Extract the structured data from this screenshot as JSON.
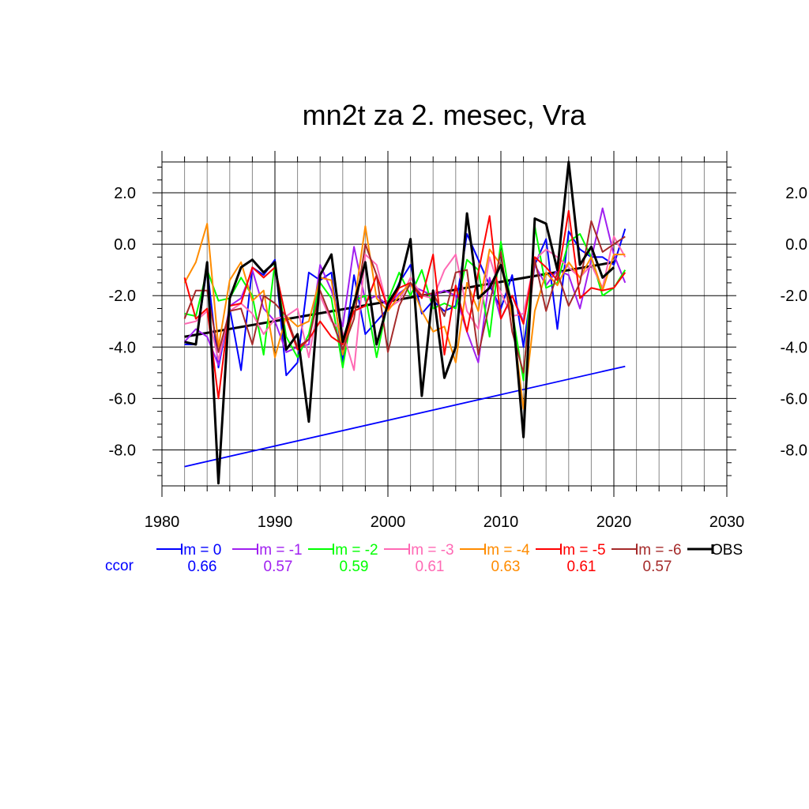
{
  "chart_data": {
    "type": "line",
    "title": "mn2t za 2. mesec, Vra",
    "xlabel": "",
    "ylabel": "",
    "xlim": [
      1980,
      2030
    ],
    "ylim": [
      -9.4,
      3.2
    ],
    "x_ticks": [
      1980,
      1990,
      2000,
      2010,
      2020,
      2030
    ],
    "y_ticks": [
      2.0,
      0.0,
      -2.0,
      -4.0,
      -6.0,
      -8.0
    ],
    "y_tick_labels": [
      "2.0",
      "0.0",
      "-2.0",
      "-4.0",
      "-6.0",
      "-8.0"
    ],
    "grid": true,
    "legend_position": "below",
    "x": [
      1982,
      1983,
      1984,
      1985,
      1986,
      1987,
      1988,
      1989,
      1990,
      1991,
      1992,
      1993,
      1994,
      1995,
      1996,
      1997,
      1998,
      1999,
      2000,
      2001,
      2002,
      2003,
      2004,
      2005,
      2006,
      2007,
      2008,
      2009,
      2010,
      2011,
      2012,
      2013,
      2014,
      2015,
      2016,
      2017,
      2018,
      2019,
      2020,
      2021
    ],
    "series": [
      {
        "name": "lm = 0",
        "color": "#0000ff",
        "ccor": "0.66",
        "values": [
          -3.9,
          -3.9,
          -0.9,
          -4.8,
          -2.5,
          -4.9,
          -0.9,
          -1.2,
          -0.6,
          -5.1,
          -4.6,
          -1.1,
          -1.4,
          -1.1,
          -4.6,
          -1.2,
          -3.5,
          -3.0,
          -2.5,
          -1.5,
          -0.8,
          -2.7,
          -2.2,
          -2.6,
          -2.4,
          0.4,
          -0.6,
          -1.6,
          -2.5,
          -1.2,
          -4.0,
          -0.8,
          0.2,
          -3.3,
          0.5,
          -0.2,
          -0.5,
          -0.5,
          -0.8,
          0.6
        ]
      },
      {
        "name": "lm = -1",
        "color": "#a020f0",
        "ccor": "0.57",
        "values": [
          -3.8,
          -3.3,
          -3.6,
          -4.7,
          -2.4,
          -2.1,
          -1.0,
          -2.5,
          -3.0,
          -4.2,
          -4.0,
          -3.9,
          -0.8,
          -1.8,
          -3.2,
          -0.1,
          -2.2,
          -2.0,
          -2.4,
          -1.9,
          -1.6,
          -1.8,
          -2.0,
          -1.8,
          -2.0,
          -3.4,
          -4.6,
          -1.3,
          -2.9,
          -2.0,
          -3.0,
          -0.8,
          -1.6,
          -1.0,
          -1.2,
          -2.5,
          -0.6,
          1.4,
          -0.4,
          -1.5
        ]
      },
      {
        "name": "lm = -2",
        "color": "#00ff00",
        "ccor": "0.59",
        "values": [
          -2.7,
          -2.8,
          -1.0,
          -2.2,
          -2.1,
          -1.3,
          -2.0,
          -4.3,
          -0.7,
          -3.6,
          -4.4,
          -3.5,
          -1.5,
          -2.1,
          -4.8,
          -2.2,
          -2.0,
          -4.4,
          -2.2,
          -1.1,
          -2.0,
          -1.0,
          -2.5,
          -2.3,
          -2.5,
          -0.6,
          -1.0,
          -3.6,
          0.1,
          -2.6,
          -5.3,
          0.7,
          -1.7,
          -1.5,
          0.1,
          0.4,
          -0.5,
          -2.0,
          -1.7,
          -1.0
        ]
      },
      {
        "name": "lm = -3",
        "color": "#ff69b4",
        "ccor": "0.61",
        "values": [
          -3.1,
          -3.0,
          -2.6,
          -4.5,
          -2.6,
          -2.3,
          -2.7,
          -3.5,
          -2.9,
          -2.8,
          -2.5,
          -4.4,
          -2.0,
          -3.0,
          -3.4,
          -4.9,
          -0.4,
          -0.8,
          -2.5,
          -2.2,
          -1.3,
          -2.0,
          -2.1,
          -1.0,
          -0.4,
          -2.6,
          -3.3,
          -0.5,
          -1.9,
          -2.8,
          -2.7,
          -0.6,
          -0.2,
          -0.5,
          -0.9,
          -1.3,
          -0.8,
          -1.7,
          0.3,
          -0.5
        ]
      },
      {
        "name": "lm = -4",
        "color": "#ff8c00",
        "ccor": "0.63",
        "values": [
          -1.5,
          -0.7,
          0.8,
          -4.0,
          -1.4,
          -0.7,
          -2.2,
          -1.8,
          -4.4,
          -2.8,
          -3.2,
          -3.0,
          -1.3,
          -1.4,
          -4.3,
          -2.4,
          0.7,
          -2.1,
          -2.6,
          -2.0,
          -1.5,
          -2.6,
          -3.4,
          -3.2,
          -4.6,
          -1.5,
          -2.6,
          -0.2,
          -0.8,
          -2.8,
          -6.4,
          -2.6,
          -1.1,
          -1.6,
          -0.7,
          -1.3,
          -0.5,
          -1.8,
          -0.4,
          -0.4
        ]
      },
      {
        "name": "lm = -5",
        "color": "#ff0000",
        "ccor": "0.61",
        "values": [
          -1.3,
          -2.9,
          -2.5,
          -6.0,
          -2.4,
          -2.3,
          -0.9,
          -1.3,
          -0.9,
          -2.9,
          -4.1,
          -3.7,
          -3.0,
          -3.6,
          -3.9,
          -2.6,
          -2.4,
          -1.2,
          -2.5,
          -1.7,
          -1.5,
          -2.1,
          -0.4,
          -4.3,
          -1.6,
          -3.4,
          -1.1,
          1.1,
          -2.9,
          -2.0,
          -3.1,
          -0.5,
          -0.9,
          -1.4,
          1.3,
          -2.1,
          -1.7,
          -1.8,
          -1.7,
          -1.1
        ]
      },
      {
        "name": "lm = -6",
        "color": "#a52a2a",
        "ccor": "0.57",
        "values": [
          -2.9,
          -1.8,
          -1.8,
          -4.2,
          -2.6,
          -2.5,
          -3.9,
          -2.0,
          -2.3,
          -2.8,
          -4.0,
          -3.7,
          -1.8,
          -2.9,
          -4.1,
          -2.9,
          0.0,
          -1.2,
          -4.2,
          -2.4,
          -1.5,
          -2.0,
          -1.9,
          -2.8,
          -1.1,
          -1.0,
          -4.3,
          -2.3,
          -0.3,
          -3.4,
          -5.0,
          -0.6,
          -2.6,
          -1.1,
          -2.4,
          -1.5,
          0.9,
          -0.3,
          0.0,
          0.3
        ]
      },
      {
        "name": "OBS",
        "color": "#000000",
        "ccor": "",
        "values": [
          -3.8,
          -3.9,
          -0.7,
          -9.3,
          -2.1,
          -0.9,
          -0.6,
          -1.1,
          -0.7,
          -4.1,
          -3.5,
          -6.9,
          -1.2,
          -0.4,
          -3.8,
          -2.3,
          -0.7,
          -3.9,
          -2.3,
          -1.6,
          0.2,
          -5.9,
          -1.8,
          -5.2,
          -4.0,
          1.2,
          -2.1,
          -1.7,
          -0.8,
          -2.4,
          -7.5,
          1.0,
          0.8,
          -1.0,
          3.2,
          -0.8,
          -0.1,
          -1.3,
          -0.9,
          null
        ]
      }
    ],
    "trend_lines": [
      {
        "name": "OBS trend",
        "color": "#000000",
        "x": [
          1982,
          2020
        ],
        "values": [
          -3.6,
          -0.7
        ]
      },
      {
        "name": "lm = 0 trend",
        "color": "#0000ff",
        "x": [
          1982,
          2021
        ],
        "values": [
          -8.65,
          -4.75
        ]
      }
    ],
    "ccor_label": "ccor",
    "ccor_label_color": "#0000ff"
  }
}
